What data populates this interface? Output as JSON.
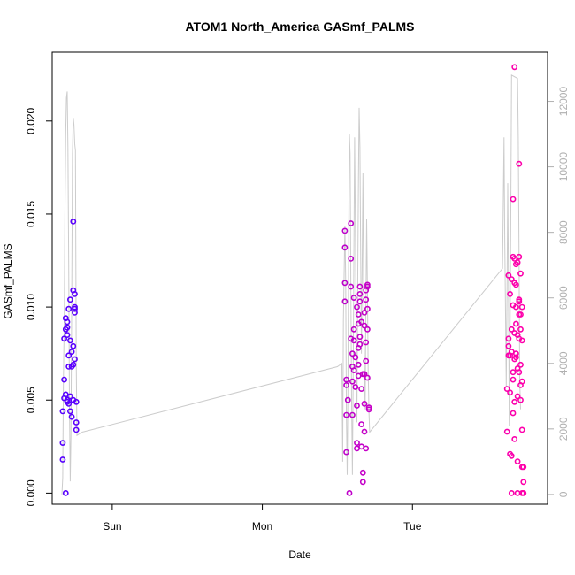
{
  "chart_data": {
    "type": "scatter",
    "title": "ATOM1 North_America GASmf_PALMS",
    "xlabel": "Date",
    "ylabel": "GASmf_PALMS",
    "x_ticks": [
      "Sun",
      "Mon",
      "Tue"
    ],
    "x_tick_values": [
      0.0,
      1.0,
      2.0
    ],
    "xlim": [
      -0.4,
      2.9
    ],
    "ylim": [
      -0.0006,
      0.0237
    ],
    "y_ticks": [
      "0.000",
      "0.005",
      "0.010",
      "0.015",
      "0.020"
    ],
    "y_tick_values": [
      0.0,
      0.005,
      0.01,
      0.015,
      0.02
    ],
    "y2lim": [
      -300,
      13500
    ],
    "y2_ticks": [
      "0",
      "2000",
      "4000",
      "6000",
      "8000",
      "10000",
      "12000"
    ],
    "y2_tick_values": [
      0,
      2000,
      4000,
      6000,
      8000,
      10000,
      12000
    ],
    "grid": false,
    "point_color_gradient": [
      "#5500ff",
      "#ff00aa"
    ],
    "altitude_line_color": "#cccccc",
    "series": [
      {
        "values": [
          [
            -0.33,
            0.0018
          ],
          [
            -0.33,
            0.0027
          ],
          [
            -0.33,
            0.0044
          ],
          [
            -0.32,
            0.0051
          ],
          [
            -0.32,
            0.0061
          ],
          [
            -0.32,
            0.0083
          ],
          [
            -0.31,
            0.0088
          ],
          [
            -0.31,
            0.0094
          ],
          [
            -0.31,
            0.0
          ],
          [
            -0.31,
            0.0053
          ],
          [
            -0.3,
            0.0085
          ],
          [
            -0.3,
            0.0089
          ],
          [
            -0.3,
            0.005
          ],
          [
            -0.3,
            0.0092
          ],
          [
            -0.29,
            0.0099
          ],
          [
            -0.29,
            0.0074
          ],
          [
            -0.29,
            0.0048
          ],
          [
            -0.29,
            0.0068
          ],
          [
            -0.28,
            0.0052
          ],
          [
            -0.28,
            0.0044
          ],
          [
            -0.28,
            0.0082
          ],
          [
            -0.28,
            0.0104
          ],
          [
            -0.27,
            0.0076
          ],
          [
            -0.27,
            0.0041
          ],
          [
            -0.27,
            0.0068
          ],
          [
            -0.26,
            0.0069
          ],
          [
            -0.26,
            0.0079
          ],
          [
            -0.26,
            0.0146
          ],
          [
            -0.26,
            0.0109
          ],
          [
            -0.25,
            0.01
          ],
          [
            -0.25,
            0.0099
          ],
          [
            -0.25,
            0.0097
          ],
          [
            -0.25,
            0.0107
          ],
          [
            -0.25,
            0.0072
          ],
          [
            -0.24,
            0.0049
          ],
          [
            -0.24,
            0.0038
          ],
          [
            -0.24,
            0.0034
          ],
          [
            -0.26,
            0.005
          ],
          [
            -0.3,
            0.0049
          ]
        ]
      },
      {
        "values": [
          [
            1.55,
            0.0141
          ],
          [
            1.55,
            0.0132
          ],
          [
            1.55,
            0.0113
          ],
          [
            1.55,
            0.0103
          ],
          [
            1.56,
            0.0061
          ],
          [
            1.56,
            0.0058
          ],
          [
            1.56,
            0.0042
          ],
          [
            1.56,
            0.0022
          ],
          [
            1.57,
            0.005
          ],
          [
            1.58,
            0.0
          ],
          [
            1.59,
            0.0083
          ],
          [
            1.59,
            0.0111
          ],
          [
            1.59,
            0.0126
          ],
          [
            1.59,
            0.0145
          ],
          [
            1.6,
            0.0075
          ],
          [
            1.6,
            0.0068
          ],
          [
            1.6,
            0.006
          ],
          [
            1.6,
            0.0042
          ],
          [
            1.61,
            0.0082
          ],
          [
            1.61,
            0.0105
          ],
          [
            1.61,
            0.0066
          ],
          [
            1.62,
            0.0073
          ],
          [
            1.62,
            0.0057
          ],
          [
            1.63,
            0.0047
          ],
          [
            1.63,
            0.0024
          ],
          [
            1.63,
            0.0027
          ],
          [
            1.63,
            0.01
          ],
          [
            1.64,
            0.0096
          ],
          [
            1.64,
            0.0091
          ],
          [
            1.64,
            0.0069
          ],
          [
            1.64,
            0.0063
          ],
          [
            1.65,
            0.008
          ],
          [
            1.65,
            0.0103
          ],
          [
            1.65,
            0.0107
          ],
          [
            1.65,
            0.0111
          ],
          [
            1.65,
            0.0084
          ],
          [
            1.66,
            0.0056
          ],
          [
            1.66,
            0.0037
          ],
          [
            1.66,
            0.0025
          ],
          [
            1.67,
            0.0064
          ],
          [
            1.67,
            0.0011
          ],
          [
            1.67,
            0.0006
          ],
          [
            1.68,
            0.0097
          ],
          [
            1.68,
            0.009
          ],
          [
            1.68,
            0.0064
          ],
          [
            1.68,
            0.0048
          ],
          [
            1.68,
            0.0033
          ],
          [
            1.69,
            0.0109
          ],
          [
            1.69,
            0.0104
          ],
          [
            1.69,
            0.0081
          ],
          [
            1.69,
            0.0071
          ],
          [
            1.69,
            0.0024
          ],
          [
            1.7,
            0.0112
          ],
          [
            1.7,
            0.0111
          ],
          [
            1.7,
            0.0099
          ],
          [
            1.7,
            0.0088
          ],
          [
            1.7,
            0.0062
          ],
          [
            1.71,
            0.0045
          ],
          [
            1.71,
            0.0046
          ],
          [
            1.64,
            0.0078
          ],
          [
            1.61,
            0.0088
          ],
          [
            1.66,
            0.0092
          ]
        ]
      },
      {
        "values": [
          [
            2.63,
            0.0056
          ],
          [
            2.63,
            0.0033
          ],
          [
            2.64,
            0.0117
          ],
          [
            2.64,
            0.0083
          ],
          [
            2.64,
            0.0079
          ],
          [
            2.64,
            0.0074
          ],
          [
            2.65,
            0.0107
          ],
          [
            2.65,
            0.0074
          ],
          [
            2.65,
            0.0054
          ],
          [
            2.65,
            0.0021
          ],
          [
            2.66,
            0.0
          ],
          [
            2.66,
            0.0115
          ],
          [
            2.66,
            0.0088
          ],
          [
            2.66,
            0.002
          ],
          [
            2.67,
            0.0158
          ],
          [
            2.67,
            0.0127
          ],
          [
            2.67,
            0.0043
          ],
          [
            2.67,
            0.0065
          ],
          [
            2.67,
            0.0061
          ],
          [
            2.68,
            0.0229
          ],
          [
            2.68,
            0.0126
          ],
          [
            2.68,
            0.0113
          ],
          [
            2.68,
            0.0086
          ],
          [
            2.68,
            0.0072
          ],
          [
            2.68,
            0.0049
          ],
          [
            2.69,
            0.0123
          ],
          [
            2.69,
            0.0112
          ],
          [
            2.69,
            0.01
          ],
          [
            2.69,
            0.0091
          ],
          [
            2.69,
            0.0075
          ],
          [
            2.7,
            0.0085
          ],
          [
            2.7,
            0.0067
          ],
          [
            2.7,
            0.0052
          ],
          [
            2.7,
            0.0
          ],
          [
            2.7,
            0.0017
          ],
          [
            2.71,
            0.0177
          ],
          [
            2.71,
            0.0127
          ],
          [
            2.71,
            0.0103
          ],
          [
            2.71,
            0.0096
          ],
          [
            2.71,
            0.0083
          ],
          [
            2.71,
            0.0065
          ],
          [
            2.72,
            0.0118
          ],
          [
            2.72,
            0.0096
          ],
          [
            2.72,
            0.0088
          ],
          [
            2.72,
            0.0069
          ],
          [
            2.72,
            0.0058
          ],
          [
            2.73,
            0.01
          ],
          [
            2.73,
            0.0082
          ],
          [
            2.73,
            0.006
          ],
          [
            2.73,
            0.0034
          ],
          [
            2.73,
            0.0014
          ],
          [
            2.73,
            0.0
          ],
          [
            2.74,
            0.0014
          ],
          [
            2.74,
            0.0006
          ],
          [
            2.74,
            0.0
          ],
          [
            2.69,
            0.0073
          ],
          [
            2.66,
            0.0076
          ],
          [
            2.72,
            0.005
          ],
          [
            2.67,
            0.0101
          ],
          [
            2.7,
            0.0124
          ],
          [
            2.68,
            0.0029
          ],
          [
            2.71,
            0.0104
          ]
        ]
      }
    ],
    "altitude_line": [
      [
        -0.335,
        0.0
      ],
      [
        -0.33,
        500
      ],
      [
        -0.325,
        3500
      ],
      [
        -0.32,
        5200
      ],
      [
        -0.315,
        8500
      ],
      [
        -0.31,
        11000
      ],
      [
        -0.305,
        12100
      ],
      [
        -0.3,
        12300
      ],
      [
        -0.295,
        10600
      ],
      [
        -0.29,
        7000
      ],
      [
        -0.285,
        2800
      ],
      [
        -0.28,
        400
      ],
      [
        -0.275,
        1800
      ],
      [
        -0.27,
        6000
      ],
      [
        -0.265,
        10400
      ],
      [
        -0.26,
        11500
      ],
      [
        -0.255,
        11300
      ],
      [
        -0.25,
        10700
      ],
      [
        -0.245,
        10500
      ],
      [
        -0.24,
        4000
      ],
      [
        -0.235,
        1800
      ],
      [
        -0.2,
        1900
      ],
      [
        1.5,
        3900
      ],
      [
        1.53,
        4000
      ],
      [
        1.535,
        1000
      ],
      [
        1.54,
        5300
      ],
      [
        1.55,
        8200
      ],
      [
        1.555,
        6500
      ],
      [
        1.56,
        2400
      ],
      [
        1.565,
        600
      ],
      [
        1.57,
        3200
      ],
      [
        1.575,
        7800
      ],
      [
        1.58,
        11000
      ],
      [
        1.585,
        10400
      ],
      [
        1.59,
        6100
      ],
      [
        1.595,
        2800
      ],
      [
        1.6,
        600
      ],
      [
        1.605,
        3400
      ],
      [
        1.61,
        7400
      ],
      [
        1.615,
        10900
      ],
      [
        1.62,
        8000
      ],
      [
        1.625,
        5000
      ],
      [
        1.63,
        2200
      ],
      [
        1.635,
        6000
      ],
      [
        1.64,
        9500
      ],
      [
        1.645,
        11800
      ],
      [
        1.65,
        10600
      ],
      [
        1.655,
        7500
      ],
      [
        1.66,
        4300
      ],
      [
        1.665,
        6800
      ],
      [
        1.67,
        9800
      ],
      [
        1.675,
        6400
      ],
      [
        1.68,
        3700
      ],
      [
        1.685,
        2600
      ],
      [
        1.69,
        5800
      ],
      [
        1.695,
        8400
      ],
      [
        1.7,
        6200
      ],
      [
        1.705,
        3800
      ],
      [
        1.71,
        2500
      ],
      [
        1.715,
        1900
      ],
      [
        2.6,
        6900
      ],
      [
        2.61,
        10900
      ],
      [
        2.615,
        7800
      ],
      [
        2.62,
        5500
      ],
      [
        2.625,
        3300
      ],
      [
        2.63,
        6200
      ],
      [
        2.635,
        9500
      ],
      [
        2.64,
        6100
      ],
      [
        2.645,
        2100
      ],
      [
        2.65,
        4800
      ],
      [
        2.655,
        8200
      ],
      [
        2.66,
        12800
      ],
      [
        2.7,
        12700
      ],
      [
        2.705,
        10900
      ],
      [
        2.71,
        7200
      ],
      [
        2.715,
        3400
      ],
      [
        2.72,
        2600
      ]
    ]
  }
}
